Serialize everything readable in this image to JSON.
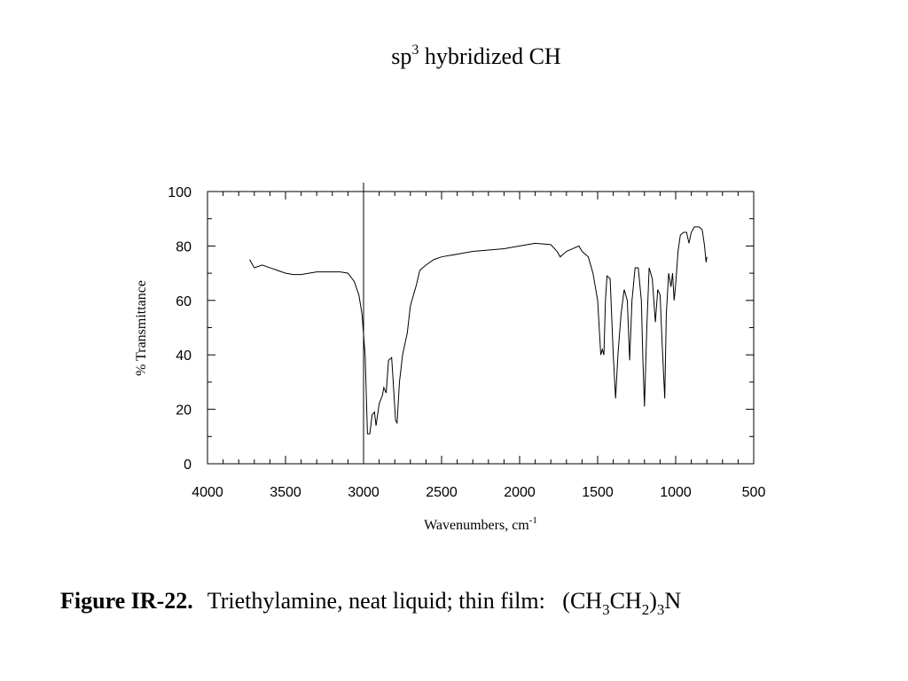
{
  "chart_data": {
    "type": "line",
    "title": [
      "sp",
      "3",
      " hybridized CH"
    ],
    "xlabel": [
      "Wavenumbers, cm",
      "-1"
    ],
    "ylabel": "% Transmittance",
    "caption": {
      "label": "Figure IR-22.",
      "text": [
        "Triethylamine, neat liquid; thin film:   (CH",
        "3",
        "CH",
        "2",
        ")",
        "3",
        "N"
      ]
    },
    "xlim": [
      4000,
      500
    ],
    "ylim": [
      0,
      100
    ],
    "xticks": [
      4000,
      3500,
      3000,
      2500,
      2000,
      1500,
      1000,
      500
    ],
    "xminorticks": [
      3900,
      3800,
      3700,
      3600,
      3400,
      3300,
      3200,
      3100,
      2900,
      2800,
      2700,
      2600,
      2400,
      2300,
      2200,
      2100,
      1900,
      1800,
      1700,
      1600,
      1400,
      1300,
      1200,
      1100,
      900,
      800,
      700,
      600
    ],
    "yticks": [
      0,
      20,
      40,
      60,
      80,
      100
    ],
    "yminorticks": [
      10,
      30,
      50,
      70,
      90
    ],
    "vline_x": 3000,
    "color": "#000000",
    "x": [
      3730,
      3700,
      3650,
      3600,
      3550,
      3500,
      3450,
      3400,
      3350,
      3300,
      3250,
      3150,
      3100,
      3060,
      3030,
      3010,
      2990,
      2975,
      2960,
      2945,
      2930,
      2920,
      2900,
      2880,
      2870,
      2855,
      2840,
      2820,
      2810,
      2795,
      2785,
      2770,
      2750,
      2720,
      2700,
      2680,
      2660,
      2640,
      2600,
      2550,
      2500,
      2400,
      2300,
      2200,
      2100,
      2000,
      1900,
      1800,
      1760,
      1740,
      1720,
      1700,
      1660,
      1620,
      1600,
      1560,
      1530,
      1500,
      1480,
      1470,
      1460,
      1450,
      1440,
      1420,
      1400,
      1385,
      1370,
      1350,
      1330,
      1310,
      1295,
      1280,
      1260,
      1240,
      1220,
      1210,
      1200,
      1185,
      1170,
      1150,
      1130,
      1115,
      1100,
      1085,
      1070,
      1060,
      1045,
      1030,
      1020,
      1010,
      1000,
      985,
      970,
      950,
      930,
      915,
      900,
      880,
      850,
      830,
      815,
      805,
      800
    ],
    "values": [
      75,
      72,
      73,
      72,
      71,
      70,
      69.5,
      69.5,
      70,
      70.5,
      70.5,
      70.5,
      70,
      67,
      62,
      55,
      40,
      11,
      11,
      18,
      19,
      14,
      22,
      25,
      28,
      26,
      38,
      39,
      30,
      16,
      15,
      30,
      40,
      48,
      58,
      62,
      66,
      71,
      73,
      75,
      76,
      77,
      78,
      78.5,
      79,
      80,
      81,
      80.5,
      78,
      76,
      77,
      78,
      79,
      80,
      78,
      76,
      70,
      60,
      40,
      42,
      40,
      60,
      69,
      68,
      40,
      24,
      40,
      55,
      64,
      60,
      38,
      60,
      72,
      72,
      60,
      38,
      21,
      50,
      72,
      68,
      52,
      64,
      62,
      42,
      24,
      55,
      70,
      65,
      70,
      60,
      66,
      78,
      84,
      85,
      85,
      81,
      85,
      87,
      87,
      86,
      80,
      74,
      76
    ]
  }
}
